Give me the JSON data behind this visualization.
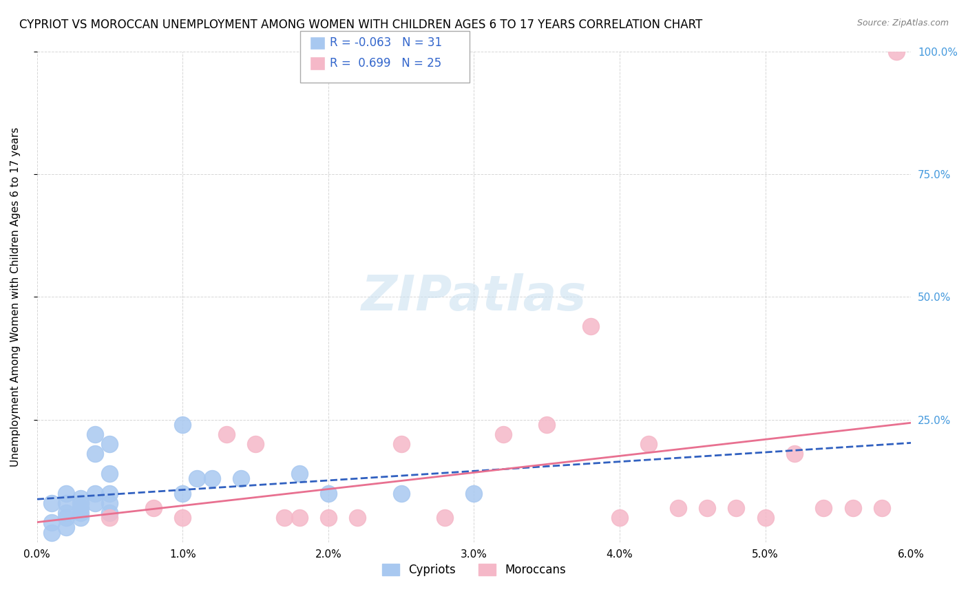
{
  "title": "CYPRIOT VS MOROCCAN UNEMPLOYMENT AMONG WOMEN WITH CHILDREN AGES 6 TO 17 YEARS CORRELATION CHART",
  "source": "Source: ZipAtlas.com",
  "ylabel": "Unemployment Among Women with Children Ages 6 to 17 years",
  "xlim": [
    0.0,
    0.06
  ],
  "ylim": [
    0.0,
    1.0
  ],
  "xtick_labels": [
    "0.0%",
    "1.0%",
    "2.0%",
    "3.0%",
    "4.0%",
    "5.0%",
    "6.0%"
  ],
  "xtick_vals": [
    0.0,
    0.01,
    0.02,
    0.03,
    0.04,
    0.05,
    0.06
  ],
  "ytick_labels": [
    "25.0%",
    "50.0%",
    "75.0%",
    "100.0%"
  ],
  "ytick_vals": [
    0.25,
    0.5,
    0.75,
    1.0
  ],
  "cypriot_color": "#a8c8f0",
  "moroccan_color": "#f5b8c8",
  "cypriot_line_color": "#3060c0",
  "moroccan_line_color": "#e87090",
  "legend_R_cypriot": "-0.063",
  "legend_N_cypriot": "31",
  "legend_R_moroccan": "0.699",
  "legend_N_moroccan": "25",
  "legend_label_cypriot": "Cypriots",
  "legend_label_moroccan": "Moroccans",
  "watermark": "ZIPatlas",
  "cypriot_x": [
    0.001,
    0.001,
    0.001,
    0.002,
    0.002,
    0.002,
    0.002,
    0.002,
    0.003,
    0.003,
    0.003,
    0.003,
    0.003,
    0.004,
    0.004,
    0.004,
    0.004,
    0.005,
    0.005,
    0.005,
    0.005,
    0.005,
    0.01,
    0.01,
    0.011,
    0.012,
    0.014,
    0.018,
    0.02,
    0.025,
    0.03
  ],
  "cypriot_y": [
    0.08,
    0.04,
    0.02,
    0.1,
    0.08,
    0.06,
    0.05,
    0.03,
    0.09,
    0.08,
    0.07,
    0.06,
    0.05,
    0.22,
    0.18,
    0.1,
    0.08,
    0.2,
    0.14,
    0.1,
    0.08,
    0.06,
    0.24,
    0.1,
    0.13,
    0.13,
    0.13,
    0.14,
    0.1,
    0.1,
    0.1
  ],
  "moroccan_x": [
    0.005,
    0.008,
    0.01,
    0.013,
    0.015,
    0.017,
    0.018,
    0.02,
    0.022,
    0.025,
    0.028,
    0.032,
    0.035,
    0.038,
    0.04,
    0.042,
    0.044,
    0.046,
    0.048,
    0.05,
    0.052,
    0.054,
    0.056,
    0.058,
    0.059
  ],
  "moroccan_y": [
    0.05,
    0.07,
    0.05,
    0.22,
    0.2,
    0.05,
    0.05,
    0.05,
    0.05,
    0.2,
    0.05,
    0.22,
    0.24,
    0.44,
    0.05,
    0.2,
    0.07,
    0.07,
    0.07,
    0.05,
    0.18,
    0.07,
    0.07,
    0.07,
    1.0
  ]
}
